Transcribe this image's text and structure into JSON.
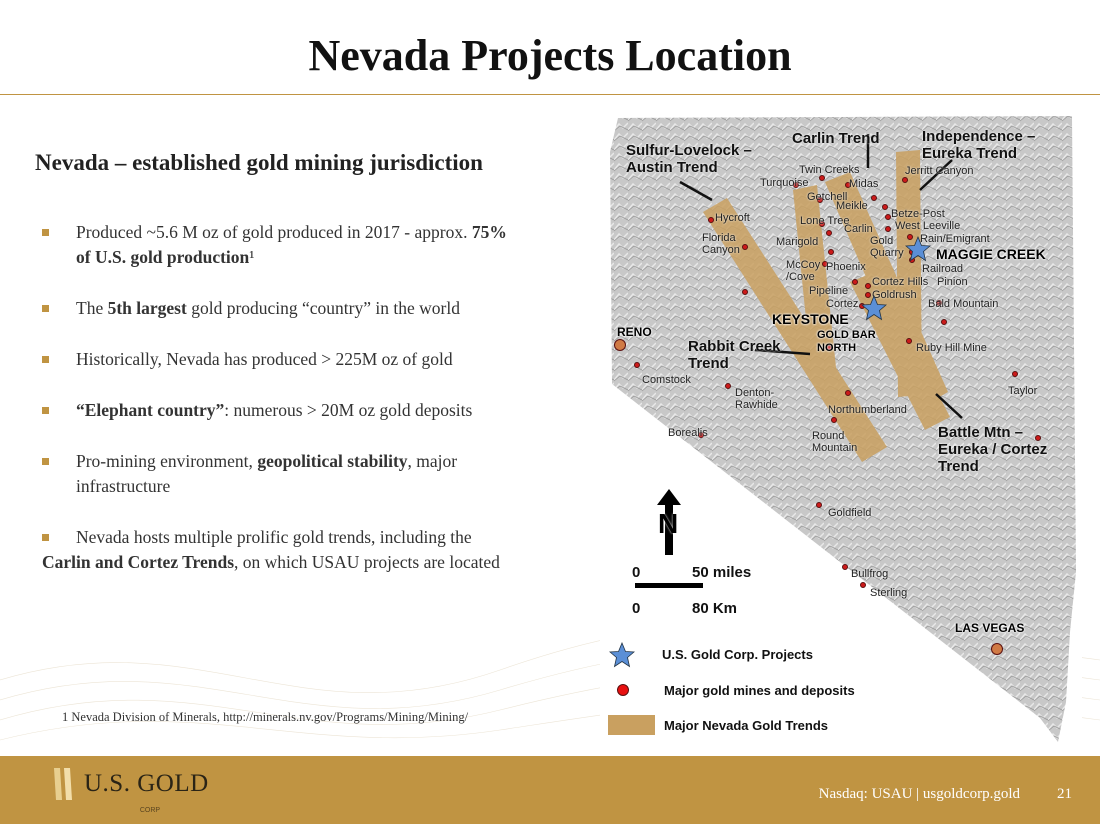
{
  "title": "Nevada Projects Location",
  "subtitle": "Nevada – established gold mining jurisdiction",
  "bullets": [
    {
      "pre": "Produced ~5.6 M oz of gold produced in 2017 - approx. ",
      "bold": "75% of U.S. gold production",
      "post": "¹"
    },
    {
      "pre": "The ",
      "bold": "5th largest",
      "post": " gold producing “country” in the world"
    },
    {
      "pre": "Historically, Nevada has produced > 225M oz of gold",
      "bold": "",
      "post": ""
    },
    {
      "pre": "",
      "bold": "“Elephant country”",
      "post": ": numerous > 20M oz gold deposits"
    },
    {
      "pre": "Pro-mining environment, ",
      "bold": "geopolitical stability",
      "post": ", major infrastructure"
    },
    {
      "pre": "Nevada hosts multiple prolific gold trends, including the ",
      "bold": "Carlin and Cortez Trends",
      "post": ", on which USAU projects are located"
    }
  ],
  "footnote": "1 Nevada Division of Minerals, http://minerals.nv.gov/Programs/Mining/Mining/",
  "footer": {
    "logo": "U.S. GOLD",
    "logo_sub": "CORP",
    "text": "Nasdaq: USAU  | usgoldcorp.gold",
    "page": "21"
  },
  "colors": {
    "gold": "#c09442",
    "trend": "#c9a060",
    "mine": "#cc1a1a",
    "star": "#5b8fd6",
    "city": "#d07a45"
  },
  "map": {
    "trends": [
      "Sulfur-Lovelock – Austin Trend",
      "Carlin Trend",
      "Independence – Eureka Trend",
      "Rabbit Creek Trend",
      "Battle Mtn – Eureka / Cortez Trend"
    ],
    "projects": [
      "MAGGIE CREEK",
      "KEYSTONE"
    ],
    "cities": [
      "RENO",
      "LAS VEGAS"
    ],
    "mines": [
      "Twin Creeks",
      "Jerritt Canyon",
      "Turquoise",
      "Midas",
      "Getchell",
      "Meikle",
      "Betze-Post",
      "West Leeville",
      "Hycroft",
      "Lone Tree",
      "Carlin",
      "Rain/Emigrant",
      "Florida Canyon",
      "Marigold",
      "Gold Quarry",
      "Railroad",
      "McCoy /Cove",
      "Phoenix",
      "Pinion",
      "Pipeline",
      "Cortez Hills",
      "Goldrush",
      "Cortez",
      "Bald Mountain",
      "GOLD BAR NORTH",
      "Ruby Hill Mine",
      "Comstock",
      "Denton-Rawhide",
      "Northumberland",
      "Taylor",
      "Borealis",
      "Round Mountain",
      "Goldfield",
      "Bullfrog",
      "Sterling"
    ],
    "north": "N",
    "scale": {
      "zero": "0",
      "miles": "50 miles",
      "km": "80 Km"
    },
    "legend": [
      "U.S. Gold Corp. Projects",
      "Major gold mines and deposits",
      "Major Nevada Gold Trends"
    ]
  }
}
